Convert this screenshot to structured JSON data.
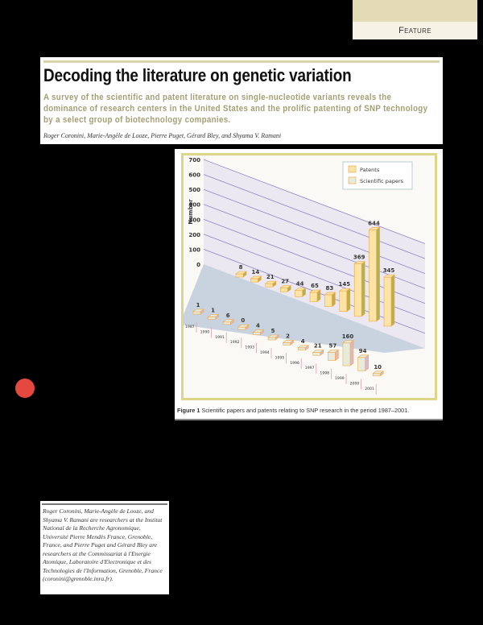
{
  "section_label": "Feature",
  "article": {
    "title": "Decoding the literature on genetic variation",
    "deck": "A survey of the scientific and patent literature on single-nucleotide variants reveals the dominance of research centers in the United States and the prolific patenting of SNP technology by a select group of biotechnology companies.",
    "authors": "Roger Coronini, Marie-Angèle de Looze, Pierre Puget, Gérard Bley, and Shyama V. Ramani"
  },
  "figure": {
    "caption_label": "Figure 1",
    "caption_text": " Scientific papers and patents relating to SNP research in the period 1987–2001."
  },
  "bio": "Roger Coronini, Marie-Angèle de Looze, and Shyama V. Ramani are researchers at the Institut National de la Recherche Agronomique, Université Pierre Mendès France, Grenoble, France, and Pierre Puget and Gérard Bley are researchers at the Commissariat à l'Energie Atomique, Laboratoire d'Electronique et des Technologies de l'Information, Grenoble, France (coronini@grenoble.inra.fr).",
  "colors": {
    "patents": "#fde3a4",
    "patents_side": "#b8b04e",
    "papers": "#e6ecdc",
    "papers_side": "#e0b8c4",
    "bar_edge": "#f0a848",
    "floor": "#c9d3e0",
    "wall": "#ece8f2",
    "gridline": "#8c86c4",
    "bullet": "#e5483f"
  },
  "chart_data": {
    "type": "bar",
    "subtype": "3d-grouped",
    "title": "",
    "xlabel": "",
    "ylabel": "Number",
    "ylim": [
      0,
      700
    ],
    "yticks": [
      0,
      100,
      200,
      300,
      400,
      500,
      600,
      700
    ],
    "grid": true,
    "legend_position": "top-right",
    "categories": [
      "1987",
      "1990",
      "1991",
      "1992",
      "1993",
      "1994",
      "1995",
      "1996",
      "1997",
      "1998",
      "1999",
      "2000",
      "2001"
    ],
    "series": [
      {
        "name": "Patents",
        "values": [
          null,
          null,
          8,
          14,
          21,
          27,
          44,
          65,
          83,
          145,
          369,
          644,
          345
        ]
      },
      {
        "name": "Scientific papers",
        "values": [
          1,
          1,
          6,
          0,
          4,
          5,
          2,
          4,
          21,
          57,
          160,
          94,
          10
        ]
      }
    ]
  }
}
